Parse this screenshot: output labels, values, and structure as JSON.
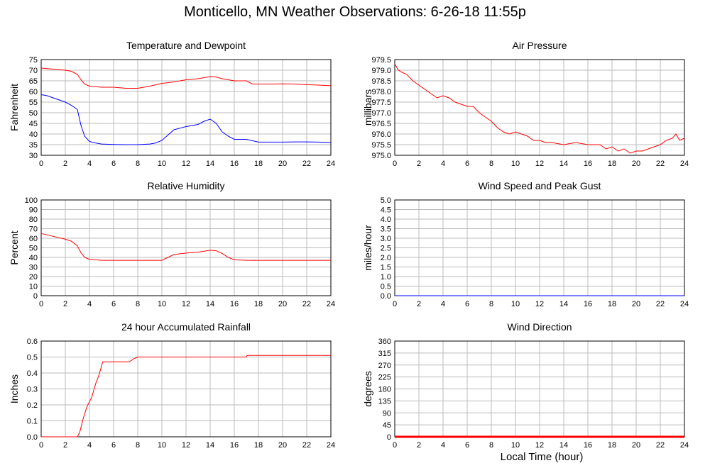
{
  "page": {
    "title": "Monticello, MN Weather Observations: 6-26-18 11:55p",
    "x_axis_label": "Local Time (hour)"
  },
  "colors": {
    "red": "#ff0000",
    "blue": "#0000ff",
    "grid": "#bbbbbb"
  },
  "chart_data": [
    {
      "id": "temp",
      "type": "line",
      "title": "Temperature and Dewpoint",
      "ylabel": "Fahrenheit",
      "xlabel": "",
      "xlim": [
        0,
        24
      ],
      "xticks": [
        0,
        2,
        4,
        6,
        8,
        10,
        12,
        14,
        16,
        18,
        20,
        22,
        24
      ],
      "ylim": [
        30,
        75
      ],
      "yticks": [
        "30",
        "35",
        "40",
        "45",
        "50",
        "55",
        "60",
        "65",
        "70",
        "75"
      ],
      "grid": true,
      "series": [
        {
          "color": "#ff0000",
          "x": [
            0,
            1,
            2,
            2.5,
            3,
            3.3,
            3.6,
            4,
            5,
            6,
            7,
            8,
            9,
            10,
            11,
            12,
            13,
            14,
            14.5,
            15,
            16,
            17,
            17.5,
            18,
            19,
            20,
            21,
            22,
            23,
            24
          ],
          "y": [
            71,
            70.5,
            70,
            69.5,
            68,
            65.5,
            63.5,
            62.5,
            62,
            62,
            61.5,
            61.5,
            62.5,
            63.8,
            64.5,
            65.5,
            66,
            67,
            66.8,
            66,
            65,
            65,
            63.5,
            63.5,
            63.5,
            63.6,
            63.5,
            63.2,
            63,
            62.7
          ]
        },
        {
          "color": "#0000ff",
          "x": [
            0,
            0.5,
            1,
            2,
            2.5,
            3,
            3.3,
            3.6,
            4,
            4.5,
            5,
            6,
            7,
            8,
            9,
            9.5,
            10,
            10.5,
            11,
            12,
            13,
            13.5,
            14,
            14.5,
            15,
            15.5,
            16,
            17,
            18,
            19,
            20,
            21,
            22,
            23,
            24
          ],
          "y": [
            58.5,
            58,
            57,
            55,
            53.5,
            51.5,
            44,
            39,
            36.5,
            35.8,
            35.3,
            35.1,
            35,
            35,
            35.3,
            35.8,
            37,
            39.5,
            42,
            43.5,
            44.5,
            46,
            47,
            45,
            41,
            39,
            37.5,
            37.5,
            36.2,
            36.2,
            36.2,
            36.3,
            36.3,
            36.2,
            36
          ]
        }
      ]
    },
    {
      "id": "pressure",
      "type": "line",
      "title": "Air Pressure",
      "ylabel": "millibars",
      "xlabel": "",
      "xlim": [
        0,
        24
      ],
      "xticks": [
        0,
        2,
        4,
        6,
        8,
        10,
        12,
        14,
        16,
        18,
        20,
        22,
        24
      ],
      "ylim": [
        975,
        979.5
      ],
      "yticks": [
        "975.0",
        "975.5",
        "976.0",
        "976.5",
        "977.0",
        "977.5",
        "978.0",
        "978.5",
        "979.0",
        "979.5"
      ],
      "grid": true,
      "series": [
        {
          "color": "#ff0000",
          "x": [
            0,
            0.3,
            0.6,
            1,
            1.5,
            2,
            3,
            3.5,
            4,
            4.5,
            5,
            5.5,
            6,
            6.5,
            7,
            7.5,
            8,
            8.5,
            9,
            9.5,
            10,
            11,
            11.5,
            12,
            12.5,
            13,
            14,
            15,
            16,
            17,
            17.5,
            18,
            18.5,
            19,
            19.5,
            20,
            20.5,
            21,
            22,
            22.5,
            23,
            23.3,
            23.6,
            24
          ],
          "y": [
            979.3,
            979,
            978.9,
            978.8,
            978.5,
            978.3,
            977.9,
            977.7,
            977.8,
            977.7,
            977.5,
            977.4,
            977.3,
            977.3,
            977,
            976.8,
            976.6,
            976.3,
            976.1,
            976,
            976.1,
            975.9,
            975.7,
            975.7,
            975.6,
            975.6,
            975.5,
            975.6,
            975.5,
            975.5,
            975.3,
            975.4,
            975.2,
            975.3,
            975.1,
            975.2,
            975.2,
            975.3,
            975.5,
            975.7,
            975.8,
            976,
            975.7,
            975.8
          ]
        }
      ]
    },
    {
      "id": "rh",
      "type": "line",
      "title": "Relative Humidity",
      "ylabel": "Percent",
      "xlabel": "",
      "xlim": [
        0,
        24
      ],
      "xticks": [
        0,
        2,
        4,
        6,
        8,
        10,
        12,
        14,
        16,
        18,
        20,
        22,
        24
      ],
      "ylim": [
        0,
        100
      ],
      "yticks": [
        "0",
        "10",
        "20",
        "30",
        "40",
        "50",
        "60",
        "70",
        "80",
        "90",
        "100"
      ],
      "grid": true,
      "series": [
        {
          "color": "#ff0000",
          "x": [
            0,
            1,
            2,
            2.5,
            3,
            3.3,
            3.6,
            4,
            5,
            6,
            8,
            9,
            10,
            10.5,
            11,
            12,
            13,
            14,
            14.5,
            15,
            15.5,
            16,
            17,
            18,
            20,
            21,
            22,
            23,
            24
          ],
          "y": [
            65,
            62,
            59,
            57,
            52,
            45,
            40,
            38,
            37,
            37,
            37,
            37,
            37,
            40,
            43,
            44.5,
            45.5,
            47.5,
            47,
            44,
            40,
            37.5,
            37,
            37,
            37,
            37,
            37,
            37,
            37
          ]
        }
      ]
    },
    {
      "id": "wind",
      "type": "line",
      "title": "Wind Speed and Peak Gust",
      "ylabel": "miles/hour",
      "xlabel": "",
      "xlim": [
        0,
        24
      ],
      "xticks": [
        0,
        2,
        4,
        6,
        8,
        10,
        12,
        14,
        16,
        18,
        20,
        22,
        24
      ],
      "ylim": [
        0,
        5
      ],
      "yticks": [
        "0.0",
        "0.5",
        "1.0",
        "1.5",
        "2.0",
        "2.5",
        "3.0",
        "3.5",
        "4.0",
        "4.5",
        "5.0"
      ],
      "grid": true,
      "series": [
        {
          "color": "#ff0000",
          "x": [
            0,
            24
          ],
          "y": [
            0,
            0
          ]
        },
        {
          "color": "#0000ff",
          "x": [
            0,
            24
          ],
          "y": [
            0,
            0
          ]
        }
      ]
    },
    {
      "id": "rain",
      "type": "line",
      "title": "24 hour Accumulated Rainfall",
      "ylabel": "Inches",
      "xlabel": "",
      "xlim": [
        0,
        24
      ],
      "xticks": [
        0,
        2,
        4,
        6,
        8,
        10,
        12,
        14,
        16,
        18,
        20,
        22,
        24
      ],
      "ylim": [
        0,
        0.6
      ],
      "yticks": [
        "0.0",
        "0.1",
        "0.2",
        "0.3",
        "0.4",
        "0.5",
        "0.6"
      ],
      "grid": true,
      "series": [
        {
          "color": "#ff0000",
          "x": [
            0,
            3,
            3.2,
            3.5,
            3.8,
            4.2,
            4.5,
            4.8,
            5.1,
            5.2,
            7.3,
            7.7,
            8,
            17,
            17.05,
            24
          ],
          "y": [
            0,
            0,
            0.03,
            0.12,
            0.19,
            0.25,
            0.33,
            0.39,
            0.47,
            0.47,
            0.47,
            0.49,
            0.5,
            0.5,
            0.51,
            0.51
          ]
        }
      ]
    },
    {
      "id": "winddir",
      "type": "line",
      "title": "Wind Direction",
      "ylabel": "degrees",
      "xlabel": "",
      "xlim": [
        0,
        24
      ],
      "xticks": [
        0,
        2,
        4,
        6,
        8,
        10,
        12,
        14,
        16,
        18,
        20,
        22,
        24
      ],
      "ylim": [
        0,
        360
      ],
      "yticks": [
        "0",
        "45",
        "90",
        "135",
        "180",
        "225",
        "270",
        "315",
        "360"
      ],
      "grid": true,
      "series": [
        {
          "color": "#ff0000",
          "x": [
            0,
            24
          ],
          "y": [
            0,
            0
          ],
          "thick": true
        }
      ]
    }
  ]
}
